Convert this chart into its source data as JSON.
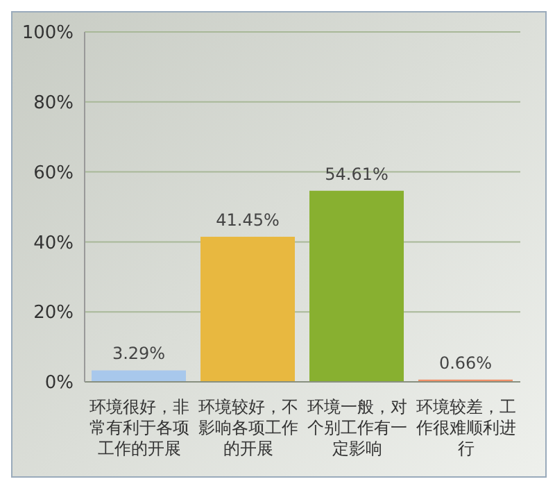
{
  "chart_data": {
    "type": "bar",
    "categories": [
      "环境很好，非常有利于各项工作的开展",
      "环境较好，不影响各项工作的开展",
      "环境一般，对个别工作有一定影响",
      "环境较差，工作很难顺利进行"
    ],
    "values": [
      3.29,
      41.45,
      54.61,
      0.66
    ],
    "colors": [
      "#a8c8ec",
      "#e8b840",
      "#88b030",
      "#f09068"
    ],
    "value_labels": [
      "3.29%",
      "41.45%",
      "54.61%",
      "0.66%"
    ],
    "ylim": [
      0,
      100
    ],
    "yticks": [
      {
        "value": 0,
        "label": "0%"
      },
      {
        "value": 20,
        "label": "20%"
      },
      {
        "value": 40,
        "label": "40%"
      },
      {
        "value": 60,
        "label": "60%"
      },
      {
        "value": 80,
        "label": "80%"
      },
      {
        "value": 100,
        "label": "100%"
      }
    ],
    "grid": "y"
  }
}
